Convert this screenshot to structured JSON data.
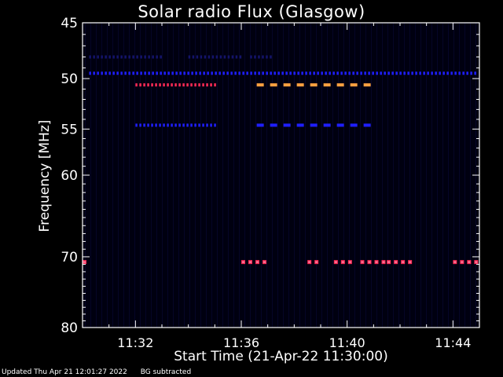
{
  "chart_data": {
    "type": "heatmap",
    "title": "Solar radio Flux (Glasgow)",
    "xlabel": "Start Time (21-Apr-22 11:30:00)",
    "ylabel": "Frequency [MHz]",
    "x_ticks": [
      "11:32",
      "11:36",
      "11:40",
      "11:44"
    ],
    "y_ticks": [
      45,
      50,
      55,
      60,
      70,
      80
    ],
    "y_scale": "log",
    "xlim": [
      "11:30:00",
      "11:45:00"
    ],
    "ylim": [
      45,
      80
    ],
    "colors": {
      "background": "#000000",
      "field": "#000010",
      "low": "#1f1fff",
      "mid": "#ff2a55",
      "high": "#ffa040"
    },
    "series": [
      {
        "freq_mhz": 49.5,
        "segments": [
          [
            "11:30:15",
            "11:44:55"
          ]
        ],
        "level": "low",
        "style": "dashed-fine"
      },
      {
        "freq_mhz": 50.6,
        "segments": [
          [
            "11:32:00",
            "11:35:05"
          ]
        ],
        "level": "mid",
        "style": "dashed-fine"
      },
      {
        "freq_mhz": 50.6,
        "segments": [
          [
            "11:36:35",
            "11:40:45"
          ]
        ],
        "level": "high",
        "style": "dashed-coarse"
      },
      {
        "freq_mhz": 54.6,
        "segments": [
          [
            "11:32:00",
            "11:35:05"
          ]
        ],
        "level": "low",
        "style": "dashed-fine"
      },
      {
        "freq_mhz": 54.6,
        "segments": [
          [
            "11:36:35",
            "11:40:45"
          ]
        ],
        "level": "low",
        "style": "dashed-coarse"
      },
      {
        "freq_mhz": 48.0,
        "segments": [
          [
            "11:30:15",
            "11:33:00"
          ],
          [
            "11:34:00",
            "11:36:00"
          ],
          [
            "11:36:20",
            "11:37:10"
          ]
        ],
        "level": "faint",
        "style": "dashed-fine"
      },
      {
        "freq_mhz": 70.7,
        "segments": [
          [
            "11:30:00",
            "11:30:10"
          ],
          [
            "11:36:00",
            "11:36:50"
          ],
          [
            "11:38:30",
            "11:39:00"
          ],
          [
            "11:39:30",
            "11:40:10"
          ],
          [
            "11:40:30",
            "11:41:20"
          ],
          [
            "11:41:30",
            "11:42:30"
          ],
          [
            "11:44:00",
            "11:45:00"
          ]
        ],
        "level": "mid",
        "style": "blocks"
      }
    ]
  },
  "footer": {
    "updated": "Updated Thu Apr 21 12:01:27 2022",
    "note": "BG subtracted"
  }
}
